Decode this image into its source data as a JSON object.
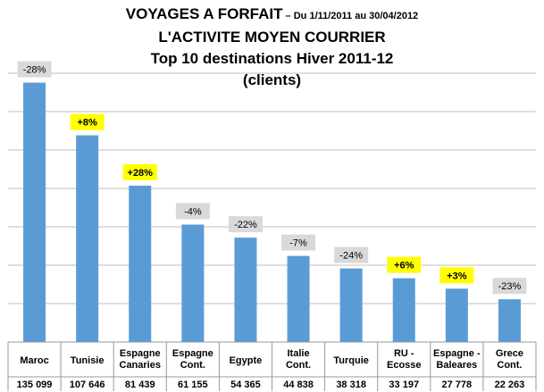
{
  "title": {
    "line1_main": "VOYAGES A FORFAIT",
    "line1_sub": " – Du 1/11/2011 au 30/04/2012",
    "line2": "L'ACTIVITE MOYEN COURRIER",
    "line3": "Top 10 destinations Hiver 2011-12",
    "line4": "(clients)"
  },
  "colors": {
    "bar": "#5b9bd5",
    "badge_negative": "#d9d9d9",
    "badge_positive": "#ffff00",
    "grid": "#bfbfbf"
  },
  "chart_data": {
    "type": "bar",
    "title": "Top 10 destinations Hiver 2011-12",
    "ylabel": "",
    "xlabel": "",
    "ylim": [
      0,
      160000
    ],
    "grid": true,
    "categories": [
      [
        "Maroc"
      ],
      [
        "Tunisie"
      ],
      [
        "Espagne",
        "Canaries"
      ],
      [
        "Espagne",
        "Cont."
      ],
      [
        "Egypte"
      ],
      [
        "Italie",
        "Cont."
      ],
      [
        "Turquie"
      ],
      [
        "RU -",
        "Ecosse"
      ],
      [
        "Espagne -",
        "Baleares"
      ],
      [
        "Grece",
        "Cont."
      ]
    ],
    "values": [
      135099,
      107646,
      81439,
      61155,
      54365,
      44838,
      38318,
      33197,
      27778,
      22263
    ],
    "value_labels": [
      "135 099",
      "107 646",
      "81 439",
      "61 155",
      "54 365",
      "44 838",
      "38 318",
      "33 197",
      "27 778",
      "22 263"
    ],
    "changes": [
      "-28%",
      "+8%",
      "+28%",
      "-4%",
      "-22%",
      "-7%",
      "-24%",
      "+6%",
      "+3%",
      "-23%"
    ],
    "change_positive": [
      false,
      true,
      true,
      false,
      false,
      false,
      false,
      true,
      true,
      false
    ]
  }
}
